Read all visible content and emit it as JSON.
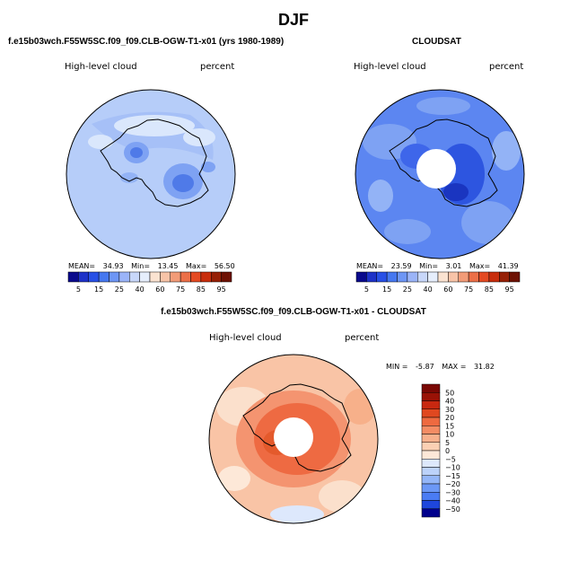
{
  "page": {
    "title": "DJF"
  },
  "colors": {
    "scale": [
      "#0a0a8c",
      "#1e32c8",
      "#2850e6",
      "#4678f0",
      "#6e96f5",
      "#9bb4f8",
      "#c8d7fa",
      "#e6eefc",
      "#fbe3d1",
      "#f8c4a8",
      "#f29c78",
      "#ec7048",
      "#e44a22",
      "#c82d0c",
      "#962006",
      "#6e1204"
    ],
    "diff_scale": [
      "#00008c",
      "#0a1eb4",
      "#1e46dc",
      "#2d5ff0",
      "#4a7cf4",
      "#6c98f6",
      "#94b6f8",
      "#bcd2fa",
      "#dde8fc",
      "#fde8d8",
      "#fbd0b4",
      "#f8b08c",
      "#f48c64",
      "#ee6a40",
      "#e04820",
      "#c82810",
      "#9a1206",
      "#7a0804"
    ],
    "land_outline": "#000000"
  },
  "panels": [
    {
      "id": "model",
      "header": "f.e15b03wch.F55W5SC.f09_f09.CLB-OGW-T1-x01 (yrs 1980-1989)",
      "variable": "High-level cloud",
      "units": "percent",
      "mean_label": "MEAN=",
      "mean": "34.93",
      "min_label": "Min=",
      "min": "13.45",
      "max_label": "Max=",
      "max": "56.50",
      "ticks": [
        "5",
        "15",
        "25",
        "40",
        "60",
        "75",
        "85",
        "95"
      ]
    },
    {
      "id": "cloudsat",
      "header": "CLOUDSAT",
      "variable": "High-level cloud",
      "units": "percent",
      "mean_label": "MEAN=",
      "mean": "23.59",
      "min_label": "Min=",
      "min": "3.01",
      "max_label": "Max=",
      "max": "41.39",
      "ticks": [
        "5",
        "15",
        "25",
        "40",
        "60",
        "75",
        "85",
        "95"
      ]
    },
    {
      "id": "difference",
      "header": "f.e15b03wch.F55W5SC.f09_f09.CLB-OGW-T1-x01 - CLOUDSAT",
      "variable": "High-level cloud",
      "units": "percent",
      "min_label": "MIN =",
      "min": "-5.87",
      "max_label": "MAX =",
      "max": "31.82",
      "ticks": [
        "50",
        "40",
        "30",
        "20",
        "15",
        "10",
        "5",
        "0",
        "−5",
        "−10",
        "−15",
        "−20",
        "−30",
        "−40",
        "−50"
      ]
    }
  ]
}
